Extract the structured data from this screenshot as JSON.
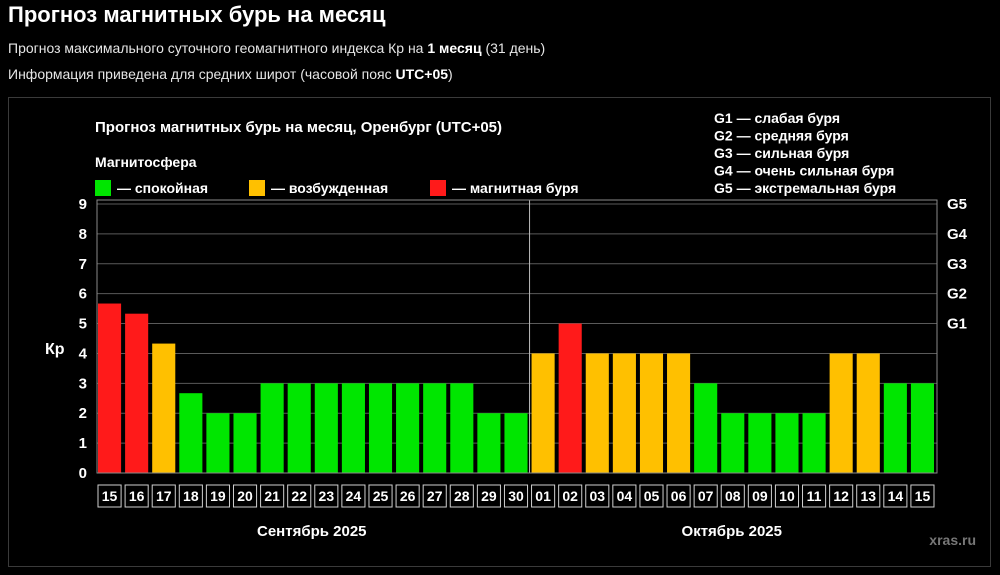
{
  "page": {
    "title": "Прогноз магнитных бурь на месяц",
    "desc1": {
      "prefix": "Прогноз максимального суточного геомагнитного индекса Кр на ",
      "bold": "1 месяц",
      "suffix": " (31 день)"
    },
    "desc2": {
      "prefix": "Информация приведена для средних широт (часовой пояс ",
      "bold": "UTC+05",
      "suffix": ")"
    }
  },
  "chart_data": {
    "type": "bar",
    "title": "Прогноз магнитных бурь на месяц, Оренбург (UTC+05)",
    "legend_title": "Магнитосфера",
    "legend": [
      {
        "label": "— спокойная",
        "color": "#00e600"
      },
      {
        "label": "— возбужденная",
        "color": "#ffc000"
      },
      {
        "label": "— магнитная буря",
        "color": "#ff1a1a"
      }
    ],
    "g_scale": [
      {
        "level": "G1",
        "text": "G1 — слабая буря",
        "kp": 5
      },
      {
        "level": "G2",
        "text": "G2 — средняя буря",
        "kp": 6
      },
      {
        "level": "G3",
        "text": "G3 — сильная буря",
        "kp": 7
      },
      {
        "level": "G4",
        "text": "G4 — очень сильная буря",
        "kp": 8
      },
      {
        "level": "G5",
        "text": "G5 — экстремальная буря",
        "kp": 9
      }
    ],
    "ylabel": "Кр",
    "ylim": [
      0,
      9
    ],
    "yticks": [
      0,
      1,
      2,
      3,
      4,
      5,
      6,
      7,
      8,
      9
    ],
    "grid": true,
    "categories": [
      "15",
      "16",
      "17",
      "18",
      "19",
      "20",
      "21",
      "22",
      "23",
      "24",
      "25",
      "26",
      "27",
      "28",
      "29",
      "30",
      "01",
      "02",
      "03",
      "04",
      "05",
      "06",
      "07",
      "08",
      "09",
      "10",
      "11",
      "12",
      "13",
      "14",
      "15"
    ],
    "values": [
      5.67,
      5.33,
      4.33,
      2.67,
      2,
      2,
      3,
      3,
      3,
      3,
      3,
      3,
      3,
      3,
      2,
      2,
      4,
      5,
      4,
      4,
      4,
      4,
      3,
      2,
      2,
      2,
      2,
      4,
      4,
      3,
      3
    ],
    "colors": [
      "#ff1a1a",
      "#ff1a1a",
      "#ffc000",
      "#00e600",
      "#00e600",
      "#00e600",
      "#00e600",
      "#00e600",
      "#00e600",
      "#00e600",
      "#00e600",
      "#00e600",
      "#00e600",
      "#00e600",
      "#00e600",
      "#00e600",
      "#ffc000",
      "#ff1a1a",
      "#ffc000",
      "#ffc000",
      "#ffc000",
      "#ffc000",
      "#00e600",
      "#00e600",
      "#00e600",
      "#00e600",
      "#00e600",
      "#ffc000",
      "#ffc000",
      "#00e600",
      "#00e600"
    ],
    "months": [
      {
        "label": "Сентябрь 2025",
        "start": 0,
        "count": 16
      },
      {
        "label": "Октябрь 2025",
        "start": 16,
        "count": 15
      }
    ],
    "watermark": "xras.ru"
  }
}
